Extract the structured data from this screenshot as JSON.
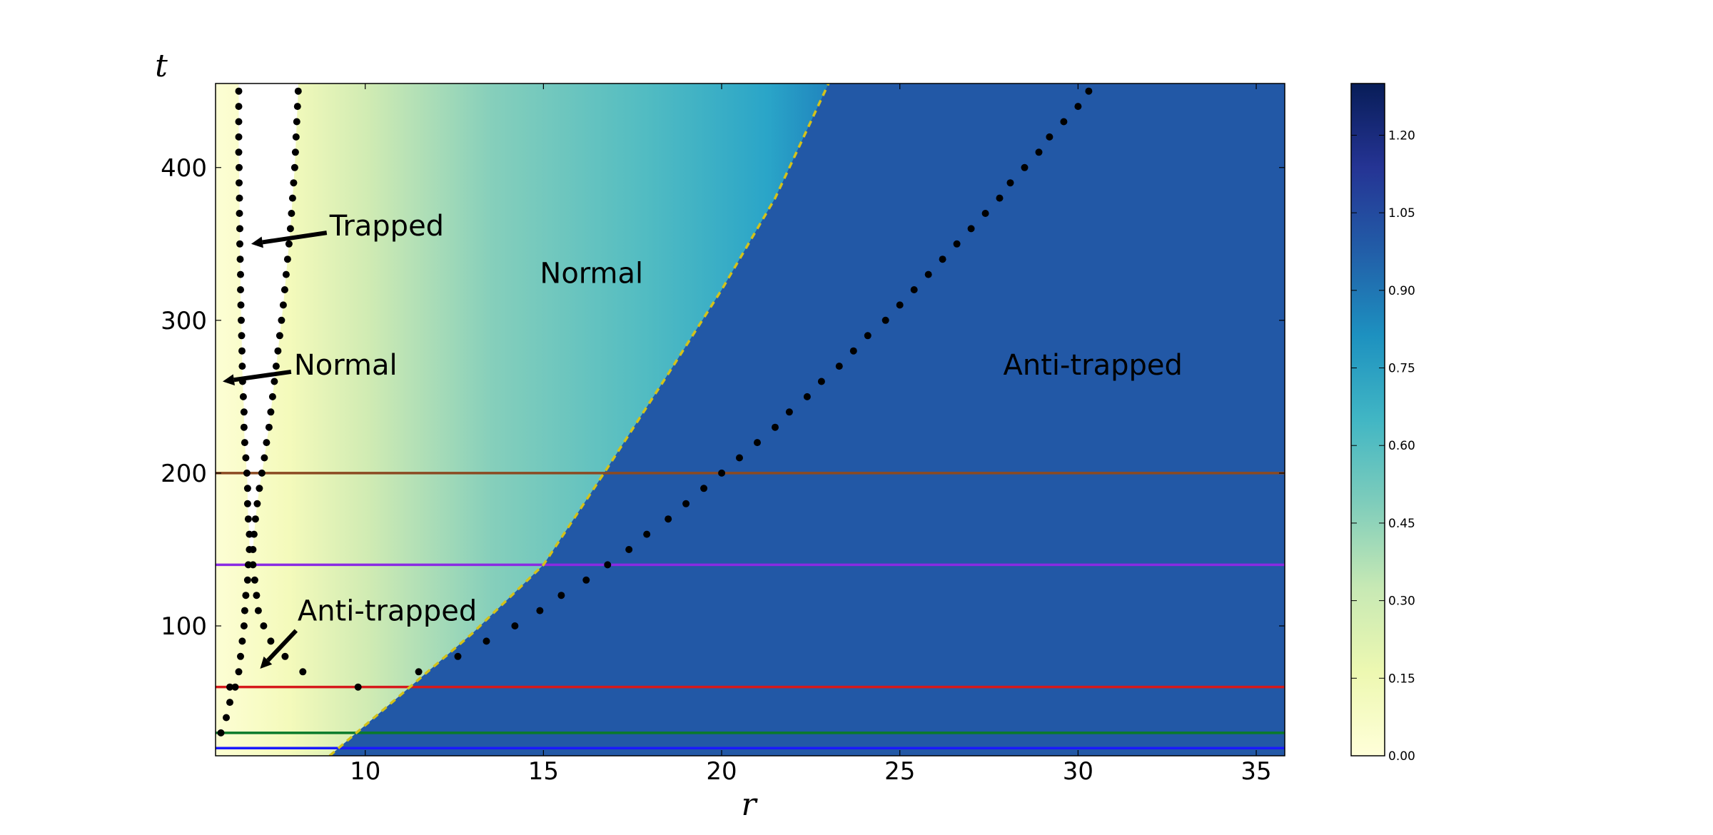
{
  "chart_data": {
    "type": "heatmap",
    "xlabel": "r",
    "ylabel": "t",
    "xlim": [
      5.8,
      35.8
    ],
    "ylim": [
      15,
      455
    ],
    "xticks": [
      10,
      15,
      20,
      25,
      30,
      35
    ],
    "yticks": [
      100,
      200,
      300,
      400
    ],
    "grid": false,
    "colormap": "YlGnBu",
    "colorbar": {
      "range": [
        0.0,
        1.3
      ],
      "ticks": [
        "0.00",
        "0.15",
        "0.30",
        "0.45",
        "0.60",
        "0.75",
        "0.90",
        "1.05",
        "1.20"
      ]
    },
    "horizontal_lines": [
      {
        "t": 200,
        "color": "#8b4a22"
      },
      {
        "t": 140,
        "color": "#8a2be2"
      },
      {
        "t": 60,
        "color": "#d6191b"
      },
      {
        "t": 30,
        "color": "#0a7a2a"
      },
      {
        "t": 20,
        "color": "#1a1aff"
      }
    ],
    "dotted_curves": [
      {
        "name": "inner boundary",
        "points": [
          [
            5.95,
            30
          ],
          [
            6.1,
            40
          ],
          [
            6.2,
            50
          ],
          [
            6.35,
            60
          ],
          [
            6.45,
            70
          ],
          [
            6.5,
            80
          ],
          [
            6.55,
            90
          ],
          [
            6.6,
            100
          ],
          [
            6.62,
            110
          ],
          [
            6.65,
            120
          ],
          [
            6.7,
            130
          ],
          [
            6.72,
            140
          ],
          [
            6.75,
            150
          ],
          [
            6.75,
            160
          ],
          [
            6.72,
            170
          ],
          [
            6.7,
            180
          ],
          [
            6.7,
            190
          ],
          [
            6.68,
            200
          ],
          [
            6.65,
            210
          ],
          [
            6.62,
            220
          ],
          [
            6.6,
            230
          ],
          [
            6.6,
            240
          ],
          [
            6.58,
            250
          ],
          [
            6.56,
            260
          ],
          [
            6.55,
            270
          ],
          [
            6.54,
            280
          ],
          [
            6.53,
            290
          ],
          [
            6.52,
            300
          ],
          [
            6.51,
            310
          ],
          [
            6.5,
            320
          ],
          [
            6.5,
            330
          ],
          [
            6.49,
            340
          ],
          [
            6.48,
            350
          ],
          [
            6.48,
            360
          ],
          [
            6.47,
            370
          ],
          [
            6.47,
            380
          ],
          [
            6.46,
            390
          ],
          [
            6.46,
            400
          ],
          [
            6.45,
            410
          ],
          [
            6.45,
            420
          ],
          [
            6.45,
            430
          ],
          [
            6.45,
            440
          ],
          [
            6.45,
            450
          ]
        ]
      },
      {
        "name": "trapped boundary",
        "points": [
          [
            7.75,
            80
          ],
          [
            7.35,
            90
          ],
          [
            7.15,
            100
          ],
          [
            7.0,
            110
          ],
          [
            6.95,
            120
          ],
          [
            6.9,
            130
          ],
          [
            6.85,
            140
          ],
          [
            6.85,
            150
          ],
          [
            6.88,
            160
          ],
          [
            6.92,
            170
          ],
          [
            6.97,
            180
          ],
          [
            7.03,
            190
          ],
          [
            7.1,
            200
          ],
          [
            7.17,
            210
          ],
          [
            7.23,
            220
          ],
          [
            7.3,
            230
          ],
          [
            7.35,
            240
          ],
          [
            7.4,
            250
          ],
          [
            7.45,
            260
          ],
          [
            7.5,
            270
          ],
          [
            7.55,
            280
          ],
          [
            7.6,
            290
          ],
          [
            7.65,
            300
          ],
          [
            7.7,
            310
          ],
          [
            7.74,
            320
          ],
          [
            7.78,
            330
          ],
          [
            7.82,
            340
          ],
          [
            7.86,
            350
          ],
          [
            7.9,
            360
          ],
          [
            7.93,
            370
          ],
          [
            7.96,
            380
          ],
          [
            7.99,
            390
          ],
          [
            8.02,
            400
          ],
          [
            8.04,
            410
          ],
          [
            8.06,
            420
          ],
          [
            8.08,
            430
          ],
          [
            8.1,
            440
          ],
          [
            8.12,
            450
          ]
        ]
      },
      {
        "name": "outer boundary",
        "points": [
          [
            6.2,
            60
          ],
          [
            8.25,
            70
          ],
          [
            9.8,
            60
          ],
          [
            11.5,
            70
          ],
          [
            12.6,
            80
          ],
          [
            13.4,
            90
          ],
          [
            14.2,
            100
          ],
          [
            14.9,
            110
          ],
          [
            15.5,
            120
          ],
          [
            16.2,
            130
          ],
          [
            16.8,
            140
          ],
          [
            17.4,
            150
          ],
          [
            17.9,
            160
          ],
          [
            18.5,
            170
          ],
          [
            19.0,
            180
          ],
          [
            19.5,
            190
          ],
          [
            20.0,
            200
          ],
          [
            20.5,
            210
          ],
          [
            21.0,
            220
          ],
          [
            21.5,
            230
          ],
          [
            21.9,
            240
          ],
          [
            22.4,
            250
          ],
          [
            22.8,
            260
          ],
          [
            23.3,
            270
          ],
          [
            23.7,
            280
          ],
          [
            24.1,
            290
          ],
          [
            24.6,
            300
          ],
          [
            25.0,
            310
          ],
          [
            25.4,
            320
          ],
          [
            25.8,
            330
          ],
          [
            26.2,
            340
          ],
          [
            26.6,
            350
          ],
          [
            27.0,
            360
          ],
          [
            27.4,
            370
          ],
          [
            27.8,
            380
          ],
          [
            28.1,
            390
          ],
          [
            28.5,
            400
          ],
          [
            28.9,
            410
          ],
          [
            29.2,
            420
          ],
          [
            29.6,
            430
          ],
          [
            30.0,
            440
          ],
          [
            30.3,
            450
          ]
        ]
      }
    ],
    "dashed_curve": {
      "color": "#d4c21a",
      "points": [
        [
          9.0,
          15
        ],
        [
          11.0,
          55
        ],
        [
          13.0,
          95
        ],
        [
          15.0,
          140
        ],
        [
          16.7,
          200
        ],
        [
          18.5,
          265
        ],
        [
          20.0,
          320
        ],
        [
          21.5,
          380
        ],
        [
          23.0,
          455
        ]
      ]
    },
    "annotations": [
      {
        "text": "Trapped",
        "x": 9.0,
        "y": 362,
        "arrow_to": [
          6.8,
          350
        ]
      },
      {
        "text": "Normal",
        "x": 14.9,
        "y": 331
      },
      {
        "text": "Normal",
        "x": 8.0,
        "y": 271,
        "arrow_to": [
          6.0,
          260
        ]
      },
      {
        "text": "Anti-trapped",
        "x": 27.9,
        "y": 271
      },
      {
        "text": "Anti-trapped",
        "x": 8.1,
        "y": 110,
        "arrow_to": [
          7.05,
          72
        ]
      }
    ]
  }
}
